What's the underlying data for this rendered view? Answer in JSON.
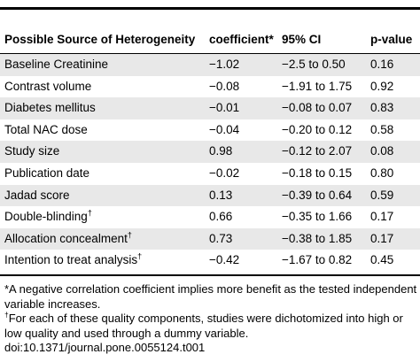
{
  "header": {
    "source": "Possible Source of Heterogeneity",
    "coefficient": "coefficient*",
    "ci": "95% CI",
    "p": "p-value"
  },
  "rows": [
    {
      "source": "Baseline Creatinine",
      "mark": "",
      "coefficient": "−1.02",
      "ci": "−2.5 to 0.50",
      "p": "0.16"
    },
    {
      "source": "Contrast volume",
      "mark": "",
      "coefficient": "−0.08",
      "ci": "−1.91 to 1.75",
      "p": "0.92"
    },
    {
      "source": "Diabetes mellitus",
      "mark": "",
      "coefficient": "−0.01",
      "ci": "−0.08 to 0.07",
      "p": "0.83"
    },
    {
      "source": "Total NAC dose",
      "mark": "",
      "coefficient": "−0.04",
      "ci": "−0.20 to 0.12",
      "p": "0.58"
    },
    {
      "source": "Study size",
      "mark": "",
      "coefficient": "0.98",
      "ci": "−0.12 to 2.07",
      "p": "0.08"
    },
    {
      "source": "Publication date",
      "mark": "",
      "coefficient": "−0.02",
      "ci": "−0.18 to 0.15",
      "p": "0.80"
    },
    {
      "source": "Jadad score",
      "mark": "",
      "coefficient": "0.13",
      "ci": "−0.39 to 0.64",
      "p": "0.59"
    },
    {
      "source": "Double-blinding",
      "mark": "†",
      "coefficient": "0.66",
      "ci": "−0.35 to 1.66",
      "p": "0.17"
    },
    {
      "source": "Allocation concealment",
      "mark": "†",
      "coefficient": "0.73",
      "ci": "−0.38 to 1.85",
      "p": "0.17"
    },
    {
      "source": "Intention to treat analysis",
      "mark": "†",
      "coefficient": "−0.42",
      "ci": "−1.67 to 0.82",
      "p": "0.45"
    }
  ],
  "notes": {
    "note1": "*A negative correlation coefficient implies more benefit as the tested independent variable increases.",
    "note2_mark": "†",
    "note2": "For each of these quality components, studies were dichotomized into high or low quality and used through a dummy variable.",
    "doi": "doi:10.1371/journal.pone.0055124.t001"
  }
}
